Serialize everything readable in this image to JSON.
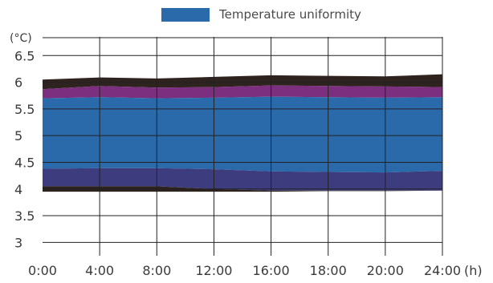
{
  "chart_data": {
    "type": "area",
    "legend": {
      "placement": "top-center",
      "label": "Temperature uniformity",
      "color": "#2A6AAA"
    },
    "y_unit_label": "(°C)",
    "x_unit_label": "(h)",
    "ylim": [
      2.75,
      6.85
    ],
    "y_ticks": [
      "6.5",
      "6",
      "5.5",
      "5",
      "4.5",
      "4",
      "3.5",
      "3"
    ],
    "y_tick_values": [
      6.5,
      6.0,
      5.5,
      5.0,
      4.5,
      4.0,
      3.5,
      3.0
    ],
    "x_ticks": [
      "0:00",
      "4:00",
      "8:00",
      "12:00",
      "16:00",
      "18:00",
      "20:00",
      "24:00"
    ],
    "grid": {
      "horizontal": true,
      "vertical": true
    },
    "colors": {
      "upper_edge": "#2E231F",
      "purple_band": "#7B2F7E",
      "blue_band": "#2A6AAA",
      "indigo_band": "#3C3C7E",
      "lower_edge": "#2E231F",
      "grid": "#222222"
    },
    "bands": {
      "dark_top": [
        6.05,
        6.09,
        6.07,
        6.1,
        6.13,
        6.12,
        6.11,
        6.15
      ],
      "purple_top": [
        5.87,
        5.93,
        5.9,
        5.91,
        5.94,
        5.93,
        5.92,
        5.91
      ],
      "blue_top": [
        5.7,
        5.72,
        5.7,
        5.71,
        5.73,
        5.72,
        5.71,
        5.72
      ],
      "indigo_top": [
        4.38,
        4.39,
        4.39,
        4.37,
        4.33,
        4.32,
        4.31,
        4.34
      ],
      "dark_bottom_top": [
        4.05,
        4.05,
        4.05,
        4.0,
        3.97,
        3.97,
        3.97,
        3.97
      ],
      "bottom": [
        3.95,
        3.95,
        3.95,
        3.95,
        3.95,
        3.96,
        3.96,
        3.97
      ]
    }
  }
}
